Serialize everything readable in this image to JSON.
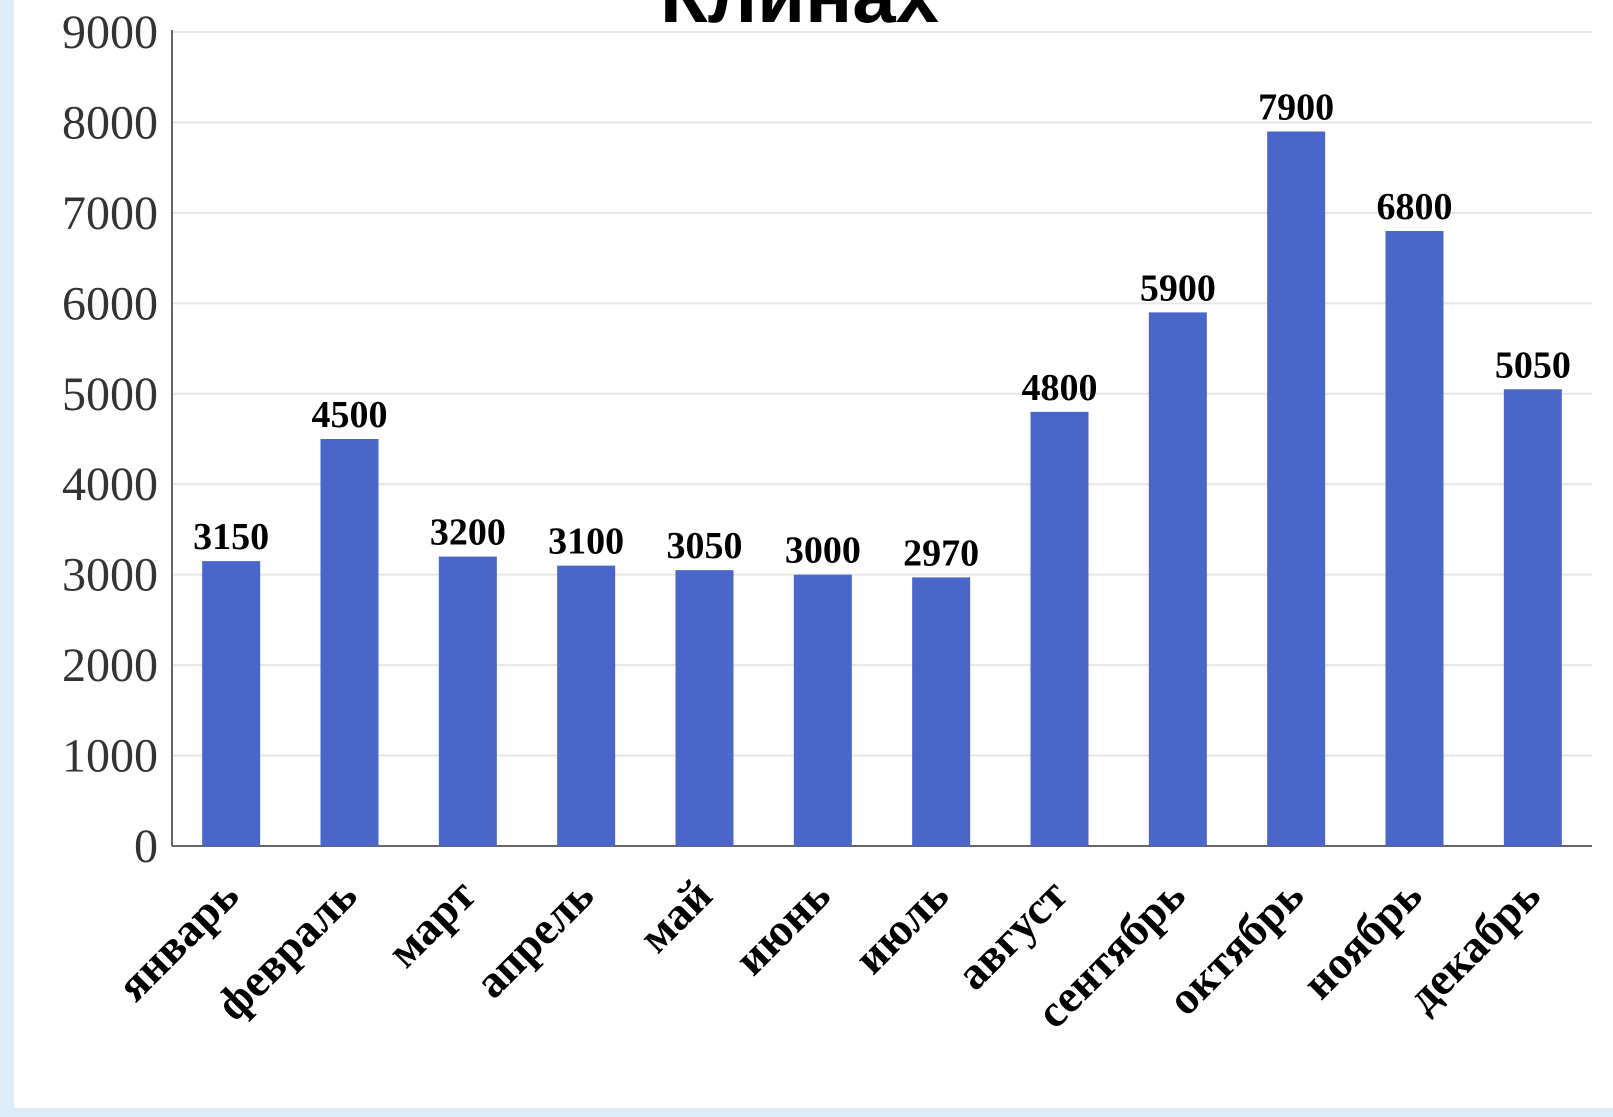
{
  "title_fragment": "Клинах",
  "chart_data": {
    "type": "bar",
    "title": "",
    "xlabel": "",
    "ylabel": "",
    "categories": [
      "январь",
      "февраль",
      "март",
      "апрель",
      "май",
      "июнь",
      "июль",
      "август",
      "сентябрь",
      "октябрь",
      "ноябрь",
      "декабрь"
    ],
    "values": [
      3150,
      4500,
      3200,
      3100,
      3050,
      3000,
      2970,
      4800,
      5900,
      7900,
      6800,
      5050
    ],
    "ylim": [
      0,
      9000
    ],
    "yticks": [
      0,
      1000,
      2000,
      3000,
      4000,
      5000,
      6000,
      7000,
      8000,
      9000
    ],
    "grid": true,
    "legend": "none",
    "colors": {
      "bar": "#4a66c8",
      "grid": "#e6e6e6",
      "axis": "#666666"
    }
  }
}
